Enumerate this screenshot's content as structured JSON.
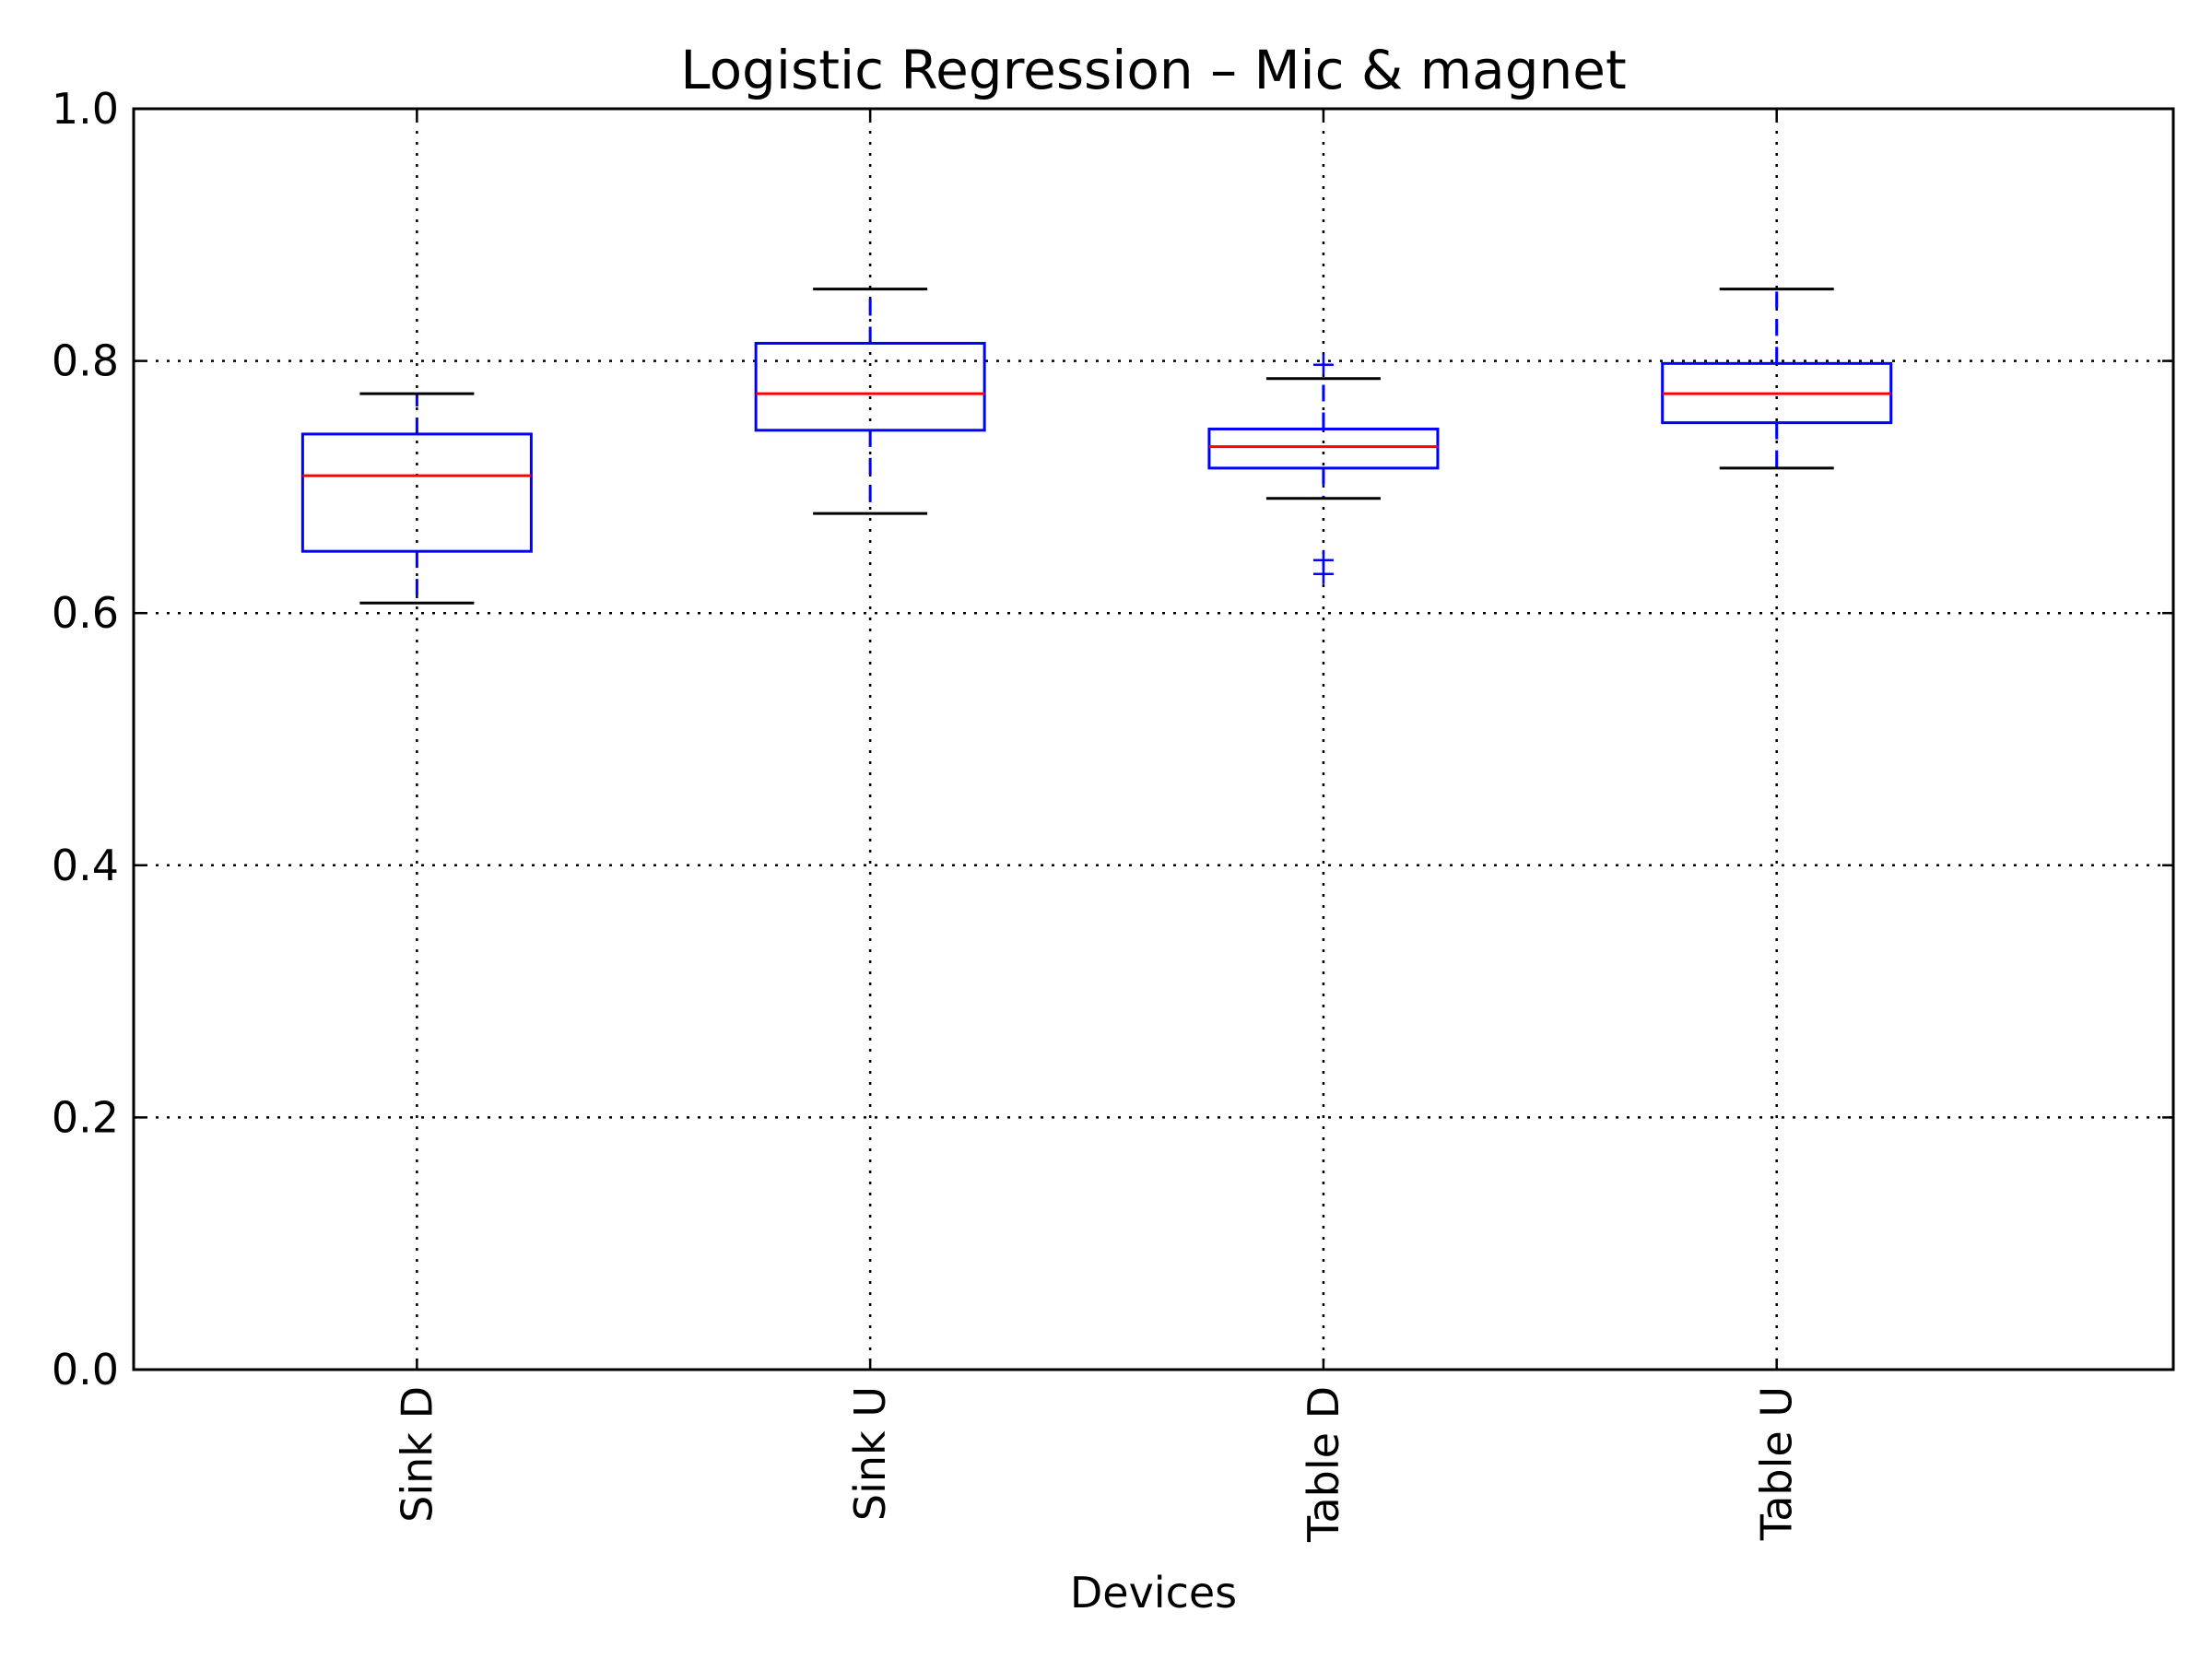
{
  "chart_data": {
    "type": "box",
    "title": "Logistic Regression – Mic & magnet",
    "xlabel": "Devices",
    "ylabel": "",
    "ylim": [
      0.0,
      1.0
    ],
    "yticks": [
      0.0,
      0.2,
      0.4,
      0.6,
      0.8,
      1.0
    ],
    "ytick_labels": [
      "0.0",
      "0.2",
      "0.4",
      "0.6",
      "0.8",
      "1.0"
    ],
    "categories": [
      "Sink D",
      "Sink U",
      "Table D",
      "Table U"
    ],
    "xtick_rotation": "vertical",
    "grid": true,
    "legend": "none",
    "boxes": [
      {
        "label": "Sink D",
        "whisker_low": 0.608,
        "q1": 0.649,
        "median": 0.709,
        "q3": 0.742,
        "whisker_high": 0.774,
        "fliers": []
      },
      {
        "label": "Sink U",
        "whisker_low": 0.679,
        "q1": 0.745,
        "median": 0.774,
        "q3": 0.814,
        "whisker_high": 0.857,
        "fliers": []
      },
      {
        "label": "Table D",
        "whisker_low": 0.691,
        "q1": 0.715,
        "median": 0.732,
        "q3": 0.746,
        "whisker_high": 0.786,
        "fliers": [
          0.631,
          0.642,
          0.797
        ]
      },
      {
        "label": "Table U",
        "whisker_low": 0.715,
        "q1": 0.751,
        "median": 0.774,
        "q3": 0.798,
        "whisker_high": 0.857,
        "fliers": []
      }
    ],
    "colors": {
      "box": "#0000ff",
      "median": "#ff0000",
      "whisker": "#0000ff",
      "cap": "#000000",
      "flier": "#0000ff"
    }
  }
}
